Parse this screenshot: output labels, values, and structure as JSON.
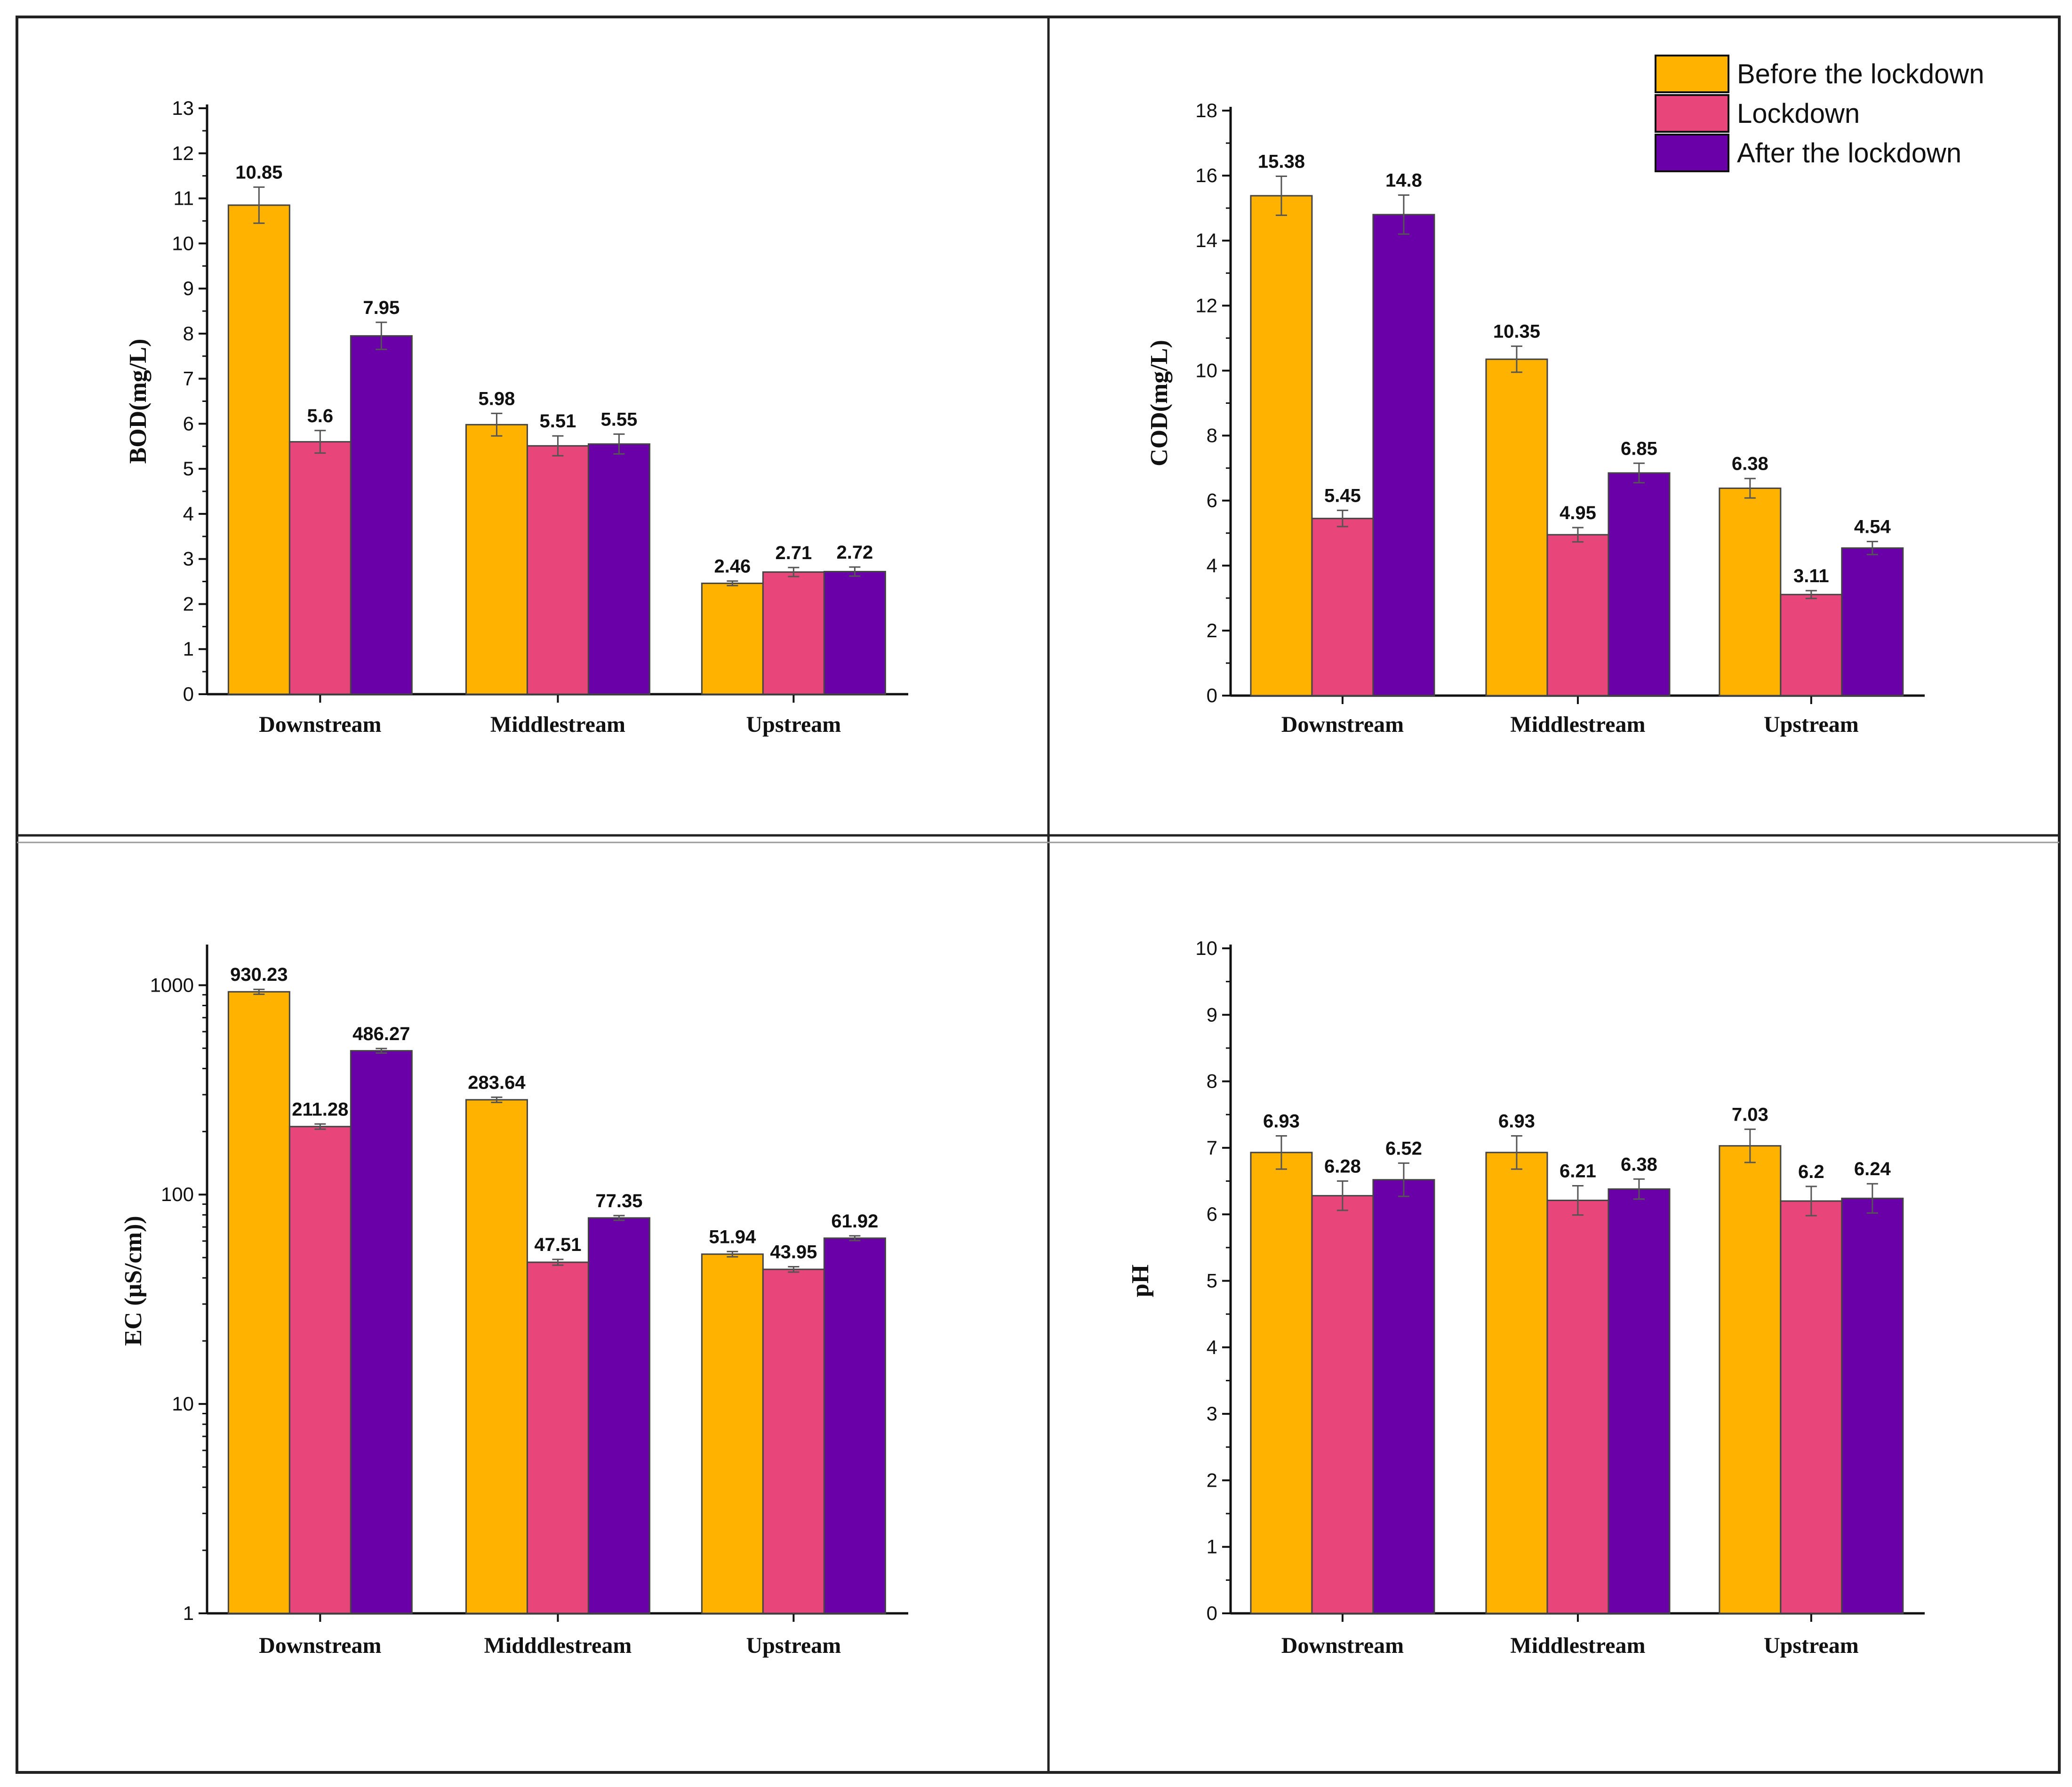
{
  "figure": {
    "legend": {
      "placement": "top-right of COD panel",
      "entries": [
        {
          "label": "Before the lockdown",
          "color": "#FFB300"
        },
        {
          "label": "Lockdown",
          "color": "#E8457A"
        },
        {
          "label": "After the lockdown",
          "color": "#6A00A8"
        }
      ]
    }
  },
  "chart_data": [
    {
      "type": "bar",
      "ylabel": "BOD(mg/L)",
      "xlabel": "",
      "ylim": [
        0,
        13
      ],
      "yticks": [
        0,
        1,
        2,
        3,
        4,
        5,
        6,
        7,
        8,
        9,
        10,
        11,
        12,
        13
      ],
      "categories": [
        "Downstream",
        "Middlestream",
        "Upstream"
      ],
      "series": [
        {
          "name": "Before the lockdown",
          "values": [
            10.85,
            5.98,
            2.46
          ],
          "errors": [
            0.4,
            0.25,
            0.05
          ],
          "labels": [
            "10.85",
            "5.98",
            "2.46"
          ]
        },
        {
          "name": "Lockdown",
          "values": [
            5.6,
            5.51,
            2.71
          ],
          "errors": [
            0.25,
            0.22,
            0.1
          ],
          "labels": [
            "5.6",
            "5.51",
            "2.71"
          ]
        },
        {
          "name": "After the lockdown",
          "values": [
            7.95,
            5.55,
            2.72
          ],
          "errors": [
            0.3,
            0.22,
            0.1
          ],
          "labels": [
            "7.95",
            "5.55",
            "2.72"
          ]
        }
      ]
    },
    {
      "type": "bar",
      "ylabel": "COD(mg/L)",
      "xlabel": "",
      "ylim": [
        0,
        18
      ],
      "yticks": [
        0,
        2,
        4,
        6,
        8,
        10,
        12,
        14,
        16,
        18
      ],
      "categories": [
        "Downstream",
        "Middlestream",
        "Upstream"
      ],
      "series": [
        {
          "name": "Before the lockdown",
          "values": [
            15.38,
            10.35,
            6.38
          ],
          "errors": [
            0.6,
            0.4,
            0.3
          ],
          "labels": [
            "15.38",
            "10.35",
            "6.38"
          ]
        },
        {
          "name": "Lockdown",
          "values": [
            5.45,
            4.95,
            3.11
          ],
          "errors": [
            0.25,
            0.22,
            0.12
          ],
          "labels": [
            "5.45",
            "4.95",
            "3.11"
          ]
        },
        {
          "name": "After the lockdown",
          "values": [
            14.8,
            6.85,
            4.54
          ],
          "errors": [
            0.6,
            0.3,
            0.2
          ],
          "labels": [
            "14.8",
            "6.85",
            "4.54"
          ]
        }
      ]
    },
    {
      "type": "bar",
      "scale": "log",
      "ylabel": "EC (μS/cm))",
      "xlabel": "",
      "ylim": [
        1,
        1500
      ],
      "yticks": [
        1,
        10,
        100,
        1000
      ],
      "categories": [
        "Downstream",
        "Midddlestream",
        "Upstream"
      ],
      "series": [
        {
          "name": "Before the lockdown",
          "values": [
            930.23,
            283.64,
            51.94
          ],
          "errors": [
            25,
            8,
            1.5
          ],
          "labels": [
            "930.23",
            "283.64",
            "51.94"
          ]
        },
        {
          "name": "Lockdown",
          "values": [
            211.28,
            47.51,
            43.95
          ],
          "errors": [
            6,
            1.5,
            1.3
          ],
          "labels": [
            "211.28",
            "47.51",
            "43.95"
          ]
        },
        {
          "name": "After the lockdown",
          "values": [
            486.27,
            77.35,
            61.92
          ],
          "errors": [
            12,
            2,
            1.6
          ],
          "labels": [
            "486.27",
            "77.35",
            "61.92"
          ]
        }
      ]
    },
    {
      "type": "bar",
      "ylabel": "pH",
      "xlabel": "",
      "ylim": [
        0,
        10
      ],
      "yticks": [
        0,
        1,
        2,
        3,
        4,
        5,
        6,
        7,
        8,
        9,
        10
      ],
      "categories": [
        "Downstream",
        "Middlestream",
        "Upstream"
      ],
      "series": [
        {
          "name": "Before the lockdown",
          "values": [
            6.93,
            6.93,
            7.03
          ],
          "errors": [
            0.25,
            0.25,
            0.25
          ],
          "labels": [
            "6.93",
            "6.93",
            "7.03"
          ]
        },
        {
          "name": "Lockdown",
          "values": [
            6.28,
            6.21,
            6.2
          ],
          "errors": [
            0.22,
            0.22,
            0.22
          ],
          "labels": [
            "6.28",
            "6.21",
            "6.2"
          ]
        },
        {
          "name": "After the lockdown",
          "values": [
            6.52,
            6.38,
            6.24
          ],
          "errors": [
            0.25,
            0.15,
            0.22
          ],
          "labels": [
            "6.52",
            "6.38",
            "6.24"
          ]
        }
      ]
    }
  ]
}
